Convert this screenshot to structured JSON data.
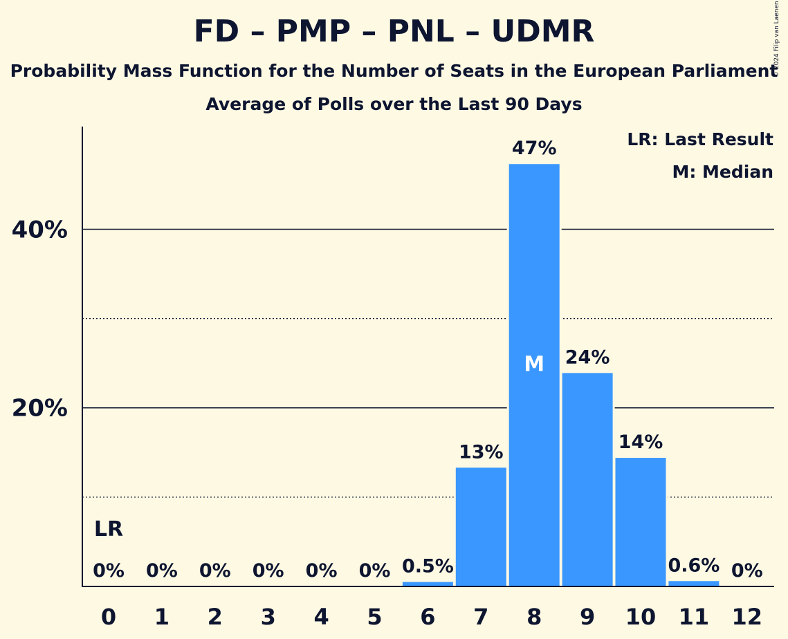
{
  "chart_data": {
    "type": "bar",
    "title": "FD – PMP – PNL – UDMR",
    "subtitle": "Probability Mass Function for the Number of Seats in the European Parliament",
    "subtitle2": "Average of Polls over the Last 90 Days",
    "categories": [
      "0",
      "1",
      "2",
      "3",
      "4",
      "5",
      "6",
      "7",
      "8",
      "9",
      "10",
      "11",
      "12"
    ],
    "values": [
      0,
      0,
      0,
      0,
      0,
      0,
      0.5,
      13.3,
      47.3,
      23.9,
      14.4,
      0.6,
      0
    ],
    "value_labels": [
      "0%",
      "0%",
      "0%",
      "0%",
      "0%",
      "0%",
      "0.5%",
      "13%",
      "47%",
      "24%",
      "14%",
      "0.6%",
      "0%"
    ],
    "ylim": [
      0,
      51.5
    ],
    "yticks": [
      {
        "value": 20,
        "label": "20%"
      },
      {
        "value": 40,
        "label": "40%"
      }
    ],
    "minor_gridlines": [
      10,
      30
    ],
    "bar_color": "#3a97ff",
    "last_result_index": 0,
    "last_result_marker": "LR",
    "median_index": 8,
    "median_marker": "M",
    "legend": [
      "LR: Last Result",
      "M: Median"
    ],
    "legend_position": "top-right"
  },
  "copyright": "© 2024 Filip van Laenen"
}
